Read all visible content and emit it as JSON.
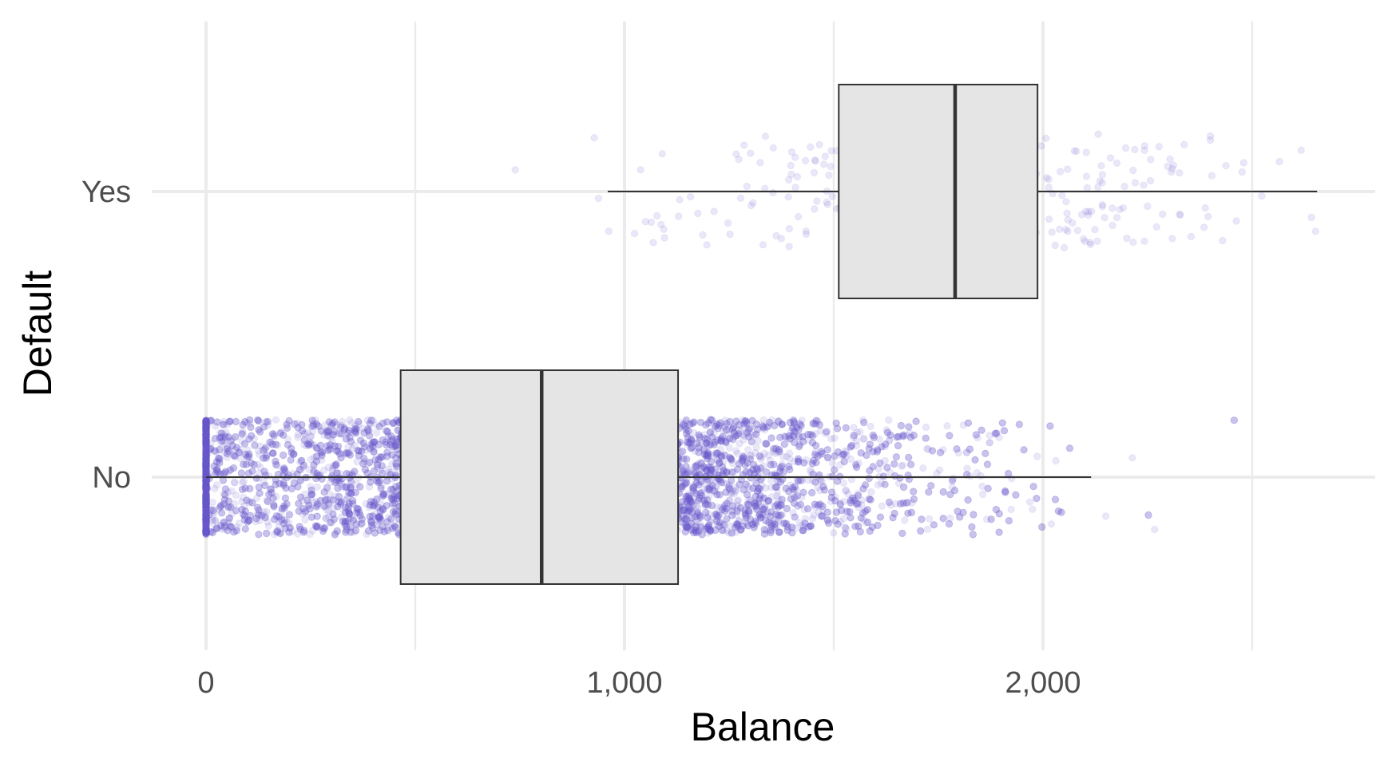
{
  "chart_data": {
    "type": "boxplot",
    "orientation": "horizontal",
    "xlabel": "Balance",
    "ylabel": "Default",
    "xlim": [
      -135,
      2800
    ],
    "x_ticks": [
      {
        "value": 0,
        "label": "0"
      },
      {
        "value": 1000,
        "label": "1,000"
      },
      {
        "value": 2000,
        "label": "2,000"
      }
    ],
    "x_minor_gridlines": [
      500,
      1500,
      2500
    ],
    "categories": [
      "No",
      "Yes"
    ],
    "grid": true,
    "colors": {
      "points": "#6A5ACD",
      "box_fill": "#E5E5E5",
      "box_stroke": "#333333",
      "grid": "#EBEBEB",
      "tick_text": "#4D4D4D"
    },
    "boxes": [
      {
        "category": "No",
        "whisker_low": 0,
        "q1": 465,
        "median": 802,
        "q3": 1128,
        "whisker_high": 2115,
        "n_points": 9667
      },
      {
        "category": "Yes",
        "whisker_low": 960,
        "q1": 1512,
        "median": 1790,
        "q3": 1987,
        "whisker_high": 2655,
        "n_points": 333
      }
    ]
  }
}
